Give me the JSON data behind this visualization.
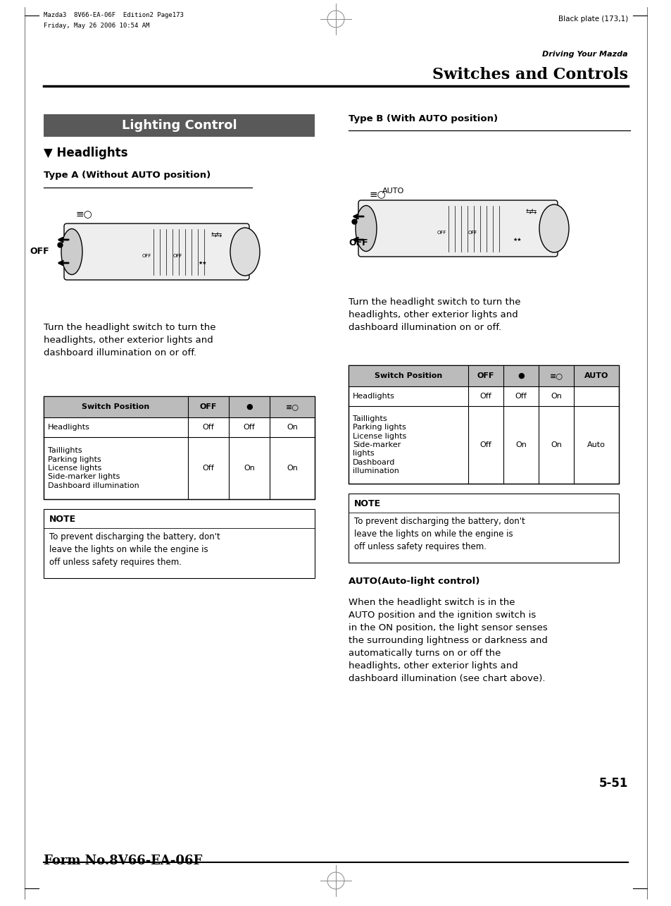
{
  "bg_color": "#ffffff",
  "page_width": 9.54,
  "page_height": 12.85,
  "header_left_line1": "Mazda3  8V66-EA-06F  Edition2 Page173",
  "header_left_line2": "Friday, May 26 2006 10:54 AM",
  "header_center_text": "Black plate (173,1)",
  "header_section": "Driving Your Mazda",
  "header_title": "Switches and Controls",
  "section_banner_text": "Lighting Control",
  "section_banner_bg": "#595959",
  "section_banner_fg": "#ffffff",
  "headlights_label": "▼ Headlights",
  "type_a_label": "Type A (Without AUTO position)",
  "type_b_label": "Type B (With AUTO position)",
  "para_text_a": "Turn the headlight switch to turn the\nheadlights, other exterior lights and\ndashboard illumination on or off.",
  "para_text_b": "Turn the headlight switch to turn the\nheadlights, other exterior lights and\ndashboard illumination on or off.",
  "table_a_header": [
    "Switch Position",
    "OFF",
    "●",
    "≡○"
  ],
  "table_a_row1": [
    "Headlights",
    "Off",
    "Off",
    "On"
  ],
  "table_a_row2": [
    "Taillights\nParking lights\nLicense lights\nSide-marker lights\nDashboard illumination",
    "Off",
    "On",
    "On"
  ],
  "table_b_header": [
    "Switch Position",
    "OFF",
    "●",
    "≡○",
    "AUTO"
  ],
  "table_b_row1": [
    "Headlights",
    "Off",
    "Off",
    "On",
    ""
  ],
  "table_b_row2": [
    "Taillights\nParking lights\nLicense lights\nSide-marker\nlights\nDashboard\nillumination",
    "Off",
    "On",
    "On",
    "Auto"
  ],
  "note_text_a": "To prevent discharging the battery, don't\nleave the lights on while the engine is\noff unless safety requires them.",
  "note_text_b": "To prevent discharging the battery, don't\nleave the lights on while the engine is\noff unless safety requires them.",
  "auto_text_title": "AUTO(Auto-light control)",
  "auto_text_body": "When the headlight switch is in the\nAUTO position and the ignition switch is\nin the ON position, the light sensor senses\nthe surrounding lightness or darkness and\nautomatically turns on or off the\nheadlights, other exterior lights and\ndashboard illumination (see chart above).",
  "page_number": "5-51",
  "footer_text": "Form No.8V66-EA-06F"
}
